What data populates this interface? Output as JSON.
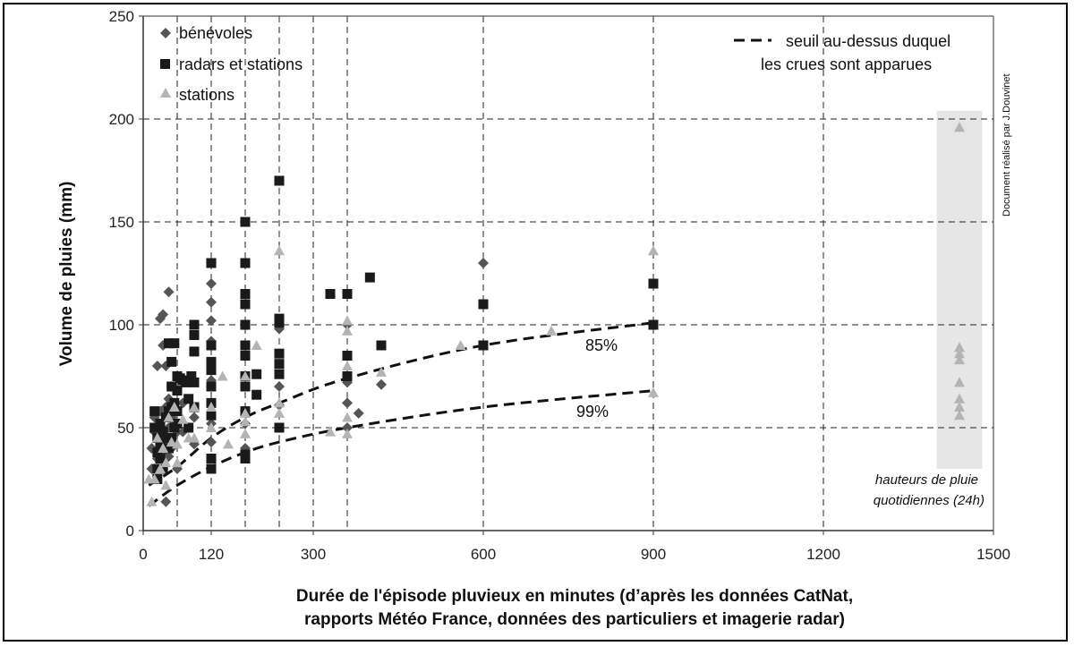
{
  "chart_data": {
    "type": "scatter",
    "xlabel_line1": "Durée de l'épisode pluvieux en minutes (d’après les données CatNat,",
    "xlabel_line2": "rapports Météo France, données des particuliers et imagerie radar)",
    "ylabel": "Volume de pluies (mm)",
    "xlim": [
      0,
      1500
    ],
    "ylim": [
      0,
      250
    ],
    "x_ticks": [
      0,
      120,
      300,
      600,
      900,
      1200,
      1500
    ],
    "y_ticks": [
      0,
      50,
      100,
      150,
      200,
      250
    ],
    "vertical_gridlines": [
      60,
      120,
      180,
      240,
      300,
      360,
      600,
      900,
      1200
    ],
    "horizontal_gridlines": [
      50,
      100,
      150,
      200
    ],
    "grid": "dashed",
    "legend_placement": "top-left",
    "series": [
      {
        "name": "bénévoles",
        "marker": "diamond",
        "color": "#555555",
        "points": [
          [
            15,
            40
          ],
          [
            15,
            30
          ],
          [
            20,
            55
          ],
          [
            20,
            48
          ],
          [
            25,
            35
          ],
          [
            25,
            80
          ],
          [
            30,
            103
          ],
          [
            30,
            58
          ],
          [
            30,
            45
          ],
          [
            35,
            105
          ],
          [
            35,
            90
          ],
          [
            35,
            38
          ],
          [
            40,
            80
          ],
          [
            40,
            60
          ],
          [
            40,
            42
          ],
          [
            40,
            14
          ],
          [
            45,
            116
          ],
          [
            45,
            64
          ],
          [
            45,
            50
          ],
          [
            45,
            36
          ],
          [
            50,
            70
          ],
          [
            50,
            55
          ],
          [
            50,
            40
          ],
          [
            55,
            62
          ],
          [
            55,
            52
          ],
          [
            60,
            48
          ],
          [
            60,
            30
          ],
          [
            70,
            62
          ],
          [
            70,
            48
          ],
          [
            80,
            50
          ],
          [
            90,
            55
          ],
          [
            90,
            42
          ],
          [
            120,
            130
          ],
          [
            120,
            120
          ],
          [
            120,
            111
          ],
          [
            120,
            102
          ],
          [
            120,
            92
          ],
          [
            120,
            73
          ],
          [
            120,
            52
          ],
          [
            120,
            43
          ],
          [
            180,
            58
          ],
          [
            180,
            52
          ],
          [
            180,
            40
          ],
          [
            240,
            98
          ],
          [
            240,
            70
          ],
          [
            240,
            61
          ],
          [
            360,
            100
          ],
          [
            360,
            72
          ],
          [
            360,
            62
          ],
          [
            360,
            50
          ],
          [
            380,
            57
          ],
          [
            420,
            71
          ],
          [
            600,
            130
          ]
        ]
      },
      {
        "name": "radars et stations",
        "marker": "square",
        "color": "#1a1a1a",
        "points": [
          [
            20,
            58
          ],
          [
            20,
            50
          ],
          [
            25,
            45
          ],
          [
            25,
            38
          ],
          [
            25,
            30
          ],
          [
            25,
            25
          ],
          [
            30,
            52
          ],
          [
            30,
            42
          ],
          [
            30,
            35
          ],
          [
            35,
            48
          ],
          [
            35,
            30
          ],
          [
            40,
            55
          ],
          [
            40,
            45
          ],
          [
            45,
            91
          ],
          [
            45,
            58
          ],
          [
            45,
            40
          ],
          [
            50,
            82
          ],
          [
            50,
            70
          ],
          [
            50,
            60
          ],
          [
            50,
            45
          ],
          [
            55,
            91
          ],
          [
            55,
            62
          ],
          [
            55,
            50
          ],
          [
            60,
            75
          ],
          [
            60,
            68
          ],
          [
            60,
            58
          ],
          [
            60,
            52
          ],
          [
            65,
            74
          ],
          [
            70,
            73
          ],
          [
            75,
            72
          ],
          [
            80,
            64
          ],
          [
            80,
            50
          ],
          [
            85,
            75
          ],
          [
            90,
            100
          ],
          [
            90,
            95
          ],
          [
            90,
            87
          ],
          [
            90,
            72
          ],
          [
            90,
            60
          ],
          [
            120,
            130
          ],
          [
            120,
            90
          ],
          [
            120,
            82
          ],
          [
            120,
            78
          ],
          [
            120,
            70
          ],
          [
            120,
            62
          ],
          [
            120,
            56
          ],
          [
            120,
            35
          ],
          [
            120,
            30
          ],
          [
            180,
            150
          ],
          [
            180,
            130
          ],
          [
            180,
            115
          ],
          [
            180,
            110
          ],
          [
            180,
            100
          ],
          [
            180,
            90
          ],
          [
            180,
            85
          ],
          [
            180,
            75
          ],
          [
            180,
            70
          ],
          [
            180,
            58
          ],
          [
            180,
            37
          ],
          [
            180,
            35
          ],
          [
            200,
            76
          ],
          [
            200,
            66
          ],
          [
            240,
            170
          ],
          [
            240,
            103
          ],
          [
            240,
            101
          ],
          [
            240,
            86
          ],
          [
            240,
            81
          ],
          [
            240,
            76
          ],
          [
            240,
            50
          ],
          [
            330,
            115
          ],
          [
            360,
            115
          ],
          [
            360,
            85
          ],
          [
            360,
            75
          ],
          [
            400,
            123
          ],
          [
            420,
            90
          ],
          [
            600,
            110
          ],
          [
            600,
            90
          ],
          [
            900,
            120
          ],
          [
            900,
            100
          ]
        ]
      },
      {
        "name": "stations",
        "marker": "triangle",
        "color": "#b4b4b4",
        "points": [
          [
            10,
            25
          ],
          [
            15,
            14
          ],
          [
            20,
            25
          ],
          [
            25,
            45
          ],
          [
            30,
            30
          ],
          [
            35,
            40
          ],
          [
            40,
            33
          ],
          [
            40,
            22
          ],
          [
            45,
            55
          ],
          [
            50,
            43
          ],
          [
            55,
            60
          ],
          [
            60,
            42
          ],
          [
            60,
            33
          ],
          [
            70,
            54
          ],
          [
            80,
            45
          ],
          [
            90,
            45
          ],
          [
            90,
            60
          ],
          [
            120,
            60
          ],
          [
            120,
            50
          ],
          [
            140,
            75
          ],
          [
            150,
            42
          ],
          [
            180,
            75
          ],
          [
            180,
            57
          ],
          [
            180,
            53
          ],
          [
            180,
            47
          ],
          [
            200,
            90
          ],
          [
            240,
            136
          ],
          [
            240,
            62
          ],
          [
            240,
            57
          ],
          [
            330,
            48
          ],
          [
            360,
            102
          ],
          [
            360,
            97
          ],
          [
            360,
            80
          ],
          [
            360,
            55
          ],
          [
            360,
            47
          ],
          [
            420,
            77
          ],
          [
            560,
            90
          ],
          [
            720,
            97
          ],
          [
            900,
            136
          ],
          [
            900,
            67
          ],
          [
            1440,
            196
          ],
          [
            1440,
            89
          ],
          [
            1440,
            86
          ],
          [
            1440,
            83
          ],
          [
            1440,
            72
          ],
          [
            1440,
            64
          ],
          [
            1440,
            60
          ],
          [
            1440,
            56
          ]
        ]
      }
    ],
    "threshold_curves": {
      "legend_line1": "seuil au-dessus duquel",
      "legend_line2": "les crues sont apparues",
      "curves": [
        {
          "label": "85%",
          "points": [
            [
              10,
              22
            ],
            [
              60,
              31
            ],
            [
              120,
              45
            ],
            [
              180,
              55
            ],
            [
              240,
              62
            ],
            [
              360,
              74
            ],
            [
              600,
              90
            ],
            [
              900,
              101
            ]
          ]
        },
        {
          "label": "99%",
          "points": [
            [
              10,
              12
            ],
            [
              60,
              22
            ],
            [
              120,
              31
            ],
            [
              180,
              38
            ],
            [
              240,
              43
            ],
            [
              360,
              50
            ],
            [
              600,
              60
            ],
            [
              900,
              68
            ]
          ]
        }
      ]
    },
    "shaded_band": {
      "x_range": [
        1400,
        1480
      ],
      "y_range": [
        30,
        204
      ]
    },
    "annotation_line1": "hauteurs de pluie",
    "annotation_line2": "quotidiennes (24h)",
    "credit": "Document réalisé par J.Douvinet"
  }
}
